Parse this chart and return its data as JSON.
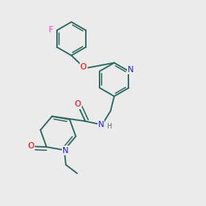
{
  "bg_color": "#ebebeb",
  "bond_color": "#2d6b5e",
  "N_color": "#1a1aff",
  "O_color": "#ff0000",
  "F_color": "#ff44cc",
  "font_size": 8.5,
  "line_width": 1.5,
  "inner_lw": 1.2,
  "xlim": [
    0,
    10
  ],
  "ylim": [
    0,
    10
  ]
}
